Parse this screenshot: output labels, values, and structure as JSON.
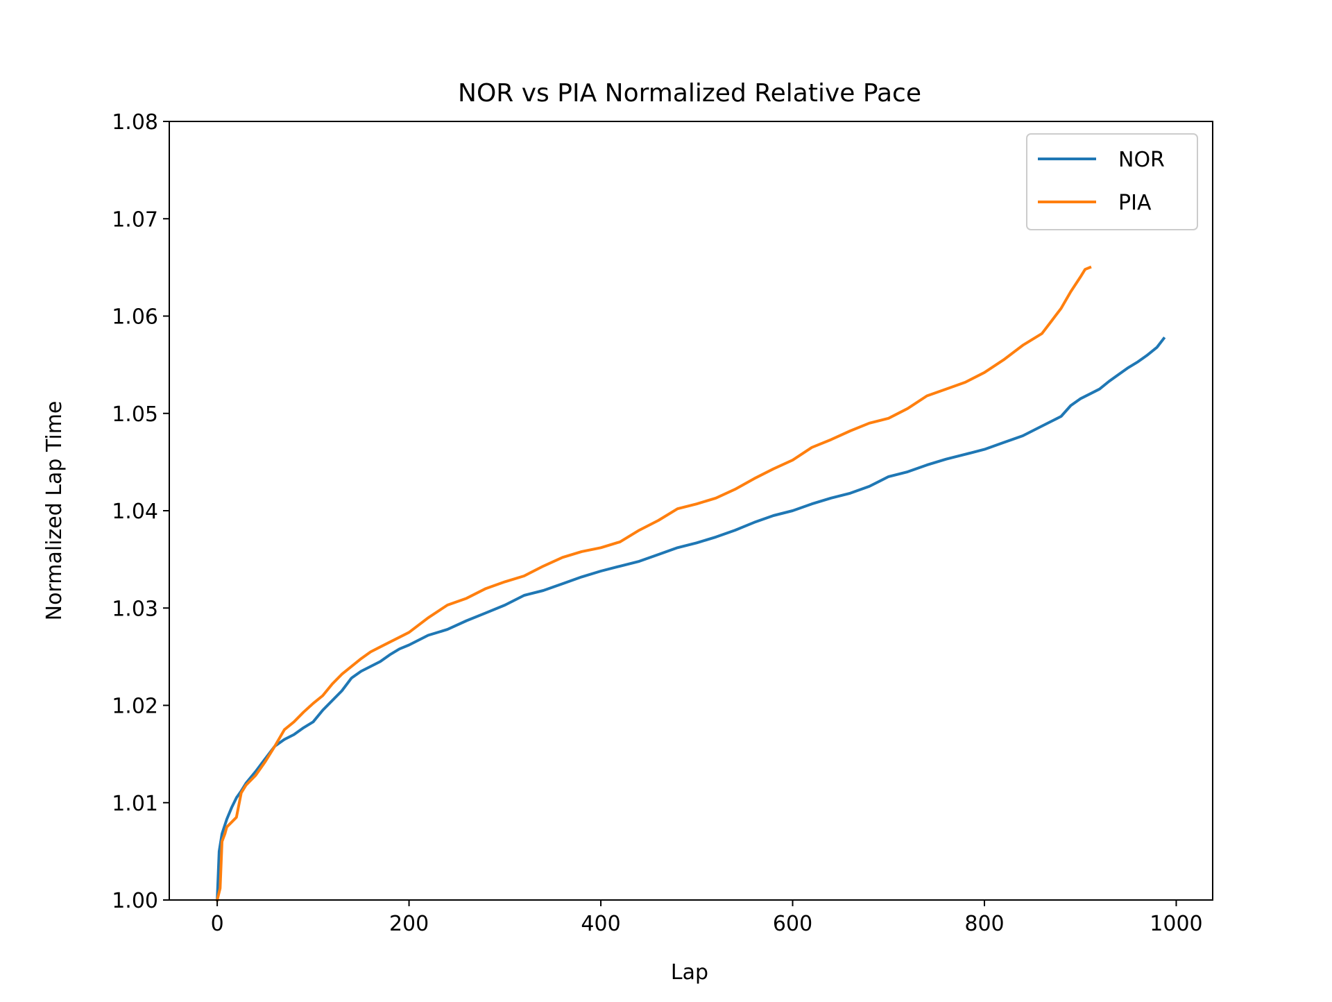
{
  "chart_data": {
    "type": "line",
    "title": "NOR vs PIA Normalized Relative Pace",
    "xlabel": "Lap",
    "ylabel": "Normalized Lap Time",
    "xlim": [
      -50,
      1038
    ],
    "ylim": [
      1.0,
      1.08
    ],
    "xticks": [
      0,
      200,
      400,
      600,
      800,
      1000
    ],
    "xtick_labels": [
      "0",
      "200",
      "400",
      "600",
      "800",
      "1000"
    ],
    "yticks": [
      1.0,
      1.01,
      1.02,
      1.03,
      1.04,
      1.05,
      1.06,
      1.07,
      1.08
    ],
    "ytick_labels": [
      "1.00",
      "1.01",
      "1.02",
      "1.03",
      "1.04",
      "1.05",
      "1.06",
      "1.07",
      "1.08"
    ],
    "grid": false,
    "legend_position": "top-right",
    "series": [
      {
        "name": "NOR",
        "color": "#1f77b4",
        "x": [
          0,
          2,
          5,
          10,
          15,
          20,
          25,
          30,
          40,
          50,
          60,
          70,
          80,
          90,
          100,
          110,
          120,
          130,
          140,
          150,
          160,
          170,
          180,
          190,
          200,
          220,
          240,
          260,
          280,
          300,
          320,
          340,
          360,
          380,
          400,
          420,
          440,
          460,
          480,
          500,
          520,
          540,
          560,
          580,
          600,
          620,
          640,
          660,
          680,
          700,
          720,
          740,
          760,
          780,
          800,
          820,
          840,
          860,
          870,
          880,
          890,
          900,
          910,
          920,
          930,
          940,
          950,
          960,
          970,
          980,
          987
        ],
        "y": [
          1.0,
          1.005,
          1.0068,
          1.0083,
          1.0095,
          1.0105,
          1.0112,
          1.012,
          1.0132,
          1.0145,
          1.0158,
          1.0165,
          1.017,
          1.0177,
          1.0183,
          1.0195,
          1.0205,
          1.0215,
          1.0228,
          1.0235,
          1.024,
          1.0245,
          1.0252,
          1.0258,
          1.0262,
          1.0272,
          1.0278,
          1.0287,
          1.0295,
          1.0303,
          1.0313,
          1.0318,
          1.0325,
          1.0332,
          1.0338,
          1.0343,
          1.0348,
          1.0355,
          1.0362,
          1.0367,
          1.0373,
          1.038,
          1.0388,
          1.0395,
          1.04,
          1.0407,
          1.0413,
          1.0418,
          1.0425,
          1.0435,
          1.044,
          1.0447,
          1.0453,
          1.0458,
          1.0463,
          1.047,
          1.0477,
          1.0487,
          1.0492,
          1.0497,
          1.0508,
          1.0515,
          1.052,
          1.0525,
          1.0533,
          1.054,
          1.0547,
          1.0553,
          1.056,
          1.0568,
          1.0577
        ]
      },
      {
        "name": "PIA",
        "color": "#ff7f0e",
        "x": [
          0,
          3,
          5,
          8,
          10,
          15,
          20,
          25,
          30,
          40,
          50,
          60,
          70,
          80,
          90,
          100,
          110,
          120,
          130,
          140,
          150,
          160,
          170,
          180,
          190,
          200,
          220,
          240,
          260,
          280,
          300,
          320,
          340,
          360,
          380,
          400,
          420,
          440,
          460,
          480,
          500,
          520,
          540,
          560,
          580,
          600,
          620,
          640,
          660,
          680,
          700,
          720,
          740,
          760,
          780,
          800,
          820,
          840,
          860,
          870,
          880,
          890,
          900,
          905,
          910
        ],
        "y": [
          1.0,
          1.0012,
          1.006,
          1.0068,
          1.0075,
          1.008,
          1.0085,
          1.011,
          1.0118,
          1.0128,
          1.0142,
          1.0158,
          1.0175,
          1.0183,
          1.0193,
          1.0202,
          1.021,
          1.0222,
          1.0232,
          1.024,
          1.0248,
          1.0255,
          1.026,
          1.0265,
          1.027,
          1.0275,
          1.029,
          1.0303,
          1.031,
          1.032,
          1.0327,
          1.0333,
          1.0343,
          1.0352,
          1.0358,
          1.0362,
          1.0368,
          1.038,
          1.039,
          1.0402,
          1.0407,
          1.0413,
          1.0422,
          1.0433,
          1.0443,
          1.0452,
          1.0465,
          1.0473,
          1.0482,
          1.049,
          1.0495,
          1.0505,
          1.0518,
          1.0525,
          1.0532,
          1.0542,
          1.0555,
          1.057,
          1.0582,
          1.0595,
          1.0608,
          1.0625,
          1.064,
          1.0648,
          1.065
        ]
      }
    ]
  }
}
